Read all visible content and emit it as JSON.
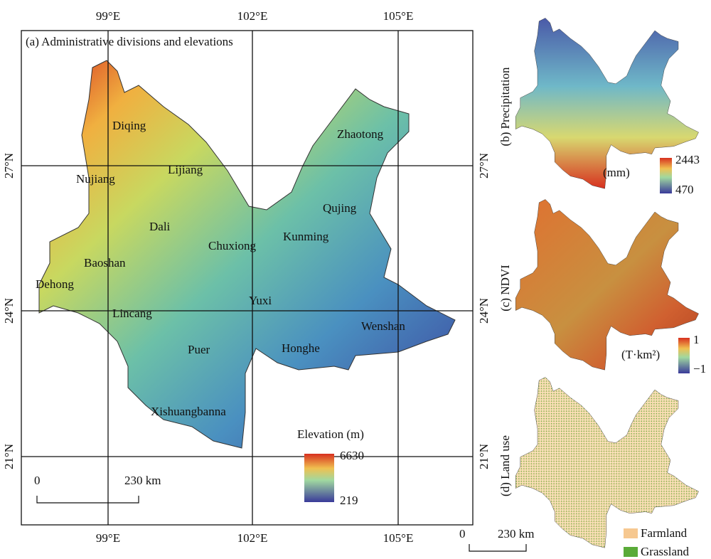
{
  "main_map": {
    "title": "(a) Administrative divisions and elevations",
    "lon_labels": [
      "99°E",
      "102°E",
      "105°E"
    ],
    "lat_labels": [
      "27°N",
      "24°N",
      "21°N"
    ],
    "regions": [
      "Diqing",
      "Nujiang",
      "Lijiang",
      "Zhaotong",
      "Qujing",
      "Dali",
      "Chuxiong",
      "Kunming",
      "Baoshan",
      "Dehong",
      "Yuxi",
      "Lincang",
      "Wenshan",
      "Puer",
      "Honghe",
      "Xishuangbanna"
    ],
    "legend": {
      "title": "Elevation (m)",
      "max": "6630",
      "min": "219"
    },
    "scale_bar": {
      "start": "0",
      "end": "230 km"
    }
  },
  "panels": [
    {
      "title": "(b) Precipitation",
      "unit": "(mm)",
      "max": "2443",
      "min": "470"
    },
    {
      "title": "(c) NDVI",
      "unit": "(T·km²)",
      "max": "1",
      "min": "−1"
    },
    {
      "title": "(d) Land use",
      "legend": [
        "Farmland",
        "Grassland"
      ]
    }
  ],
  "side_scale_bar": {
    "start": "0",
    "end": "230 km"
  }
}
